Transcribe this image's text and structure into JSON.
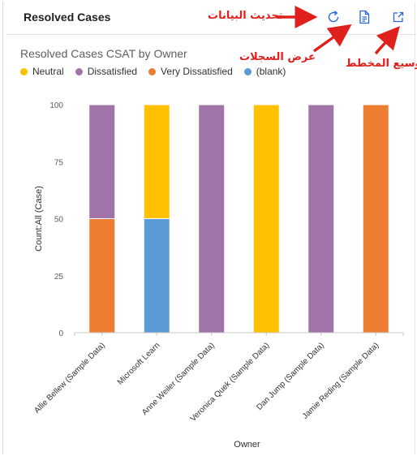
{
  "panel": {
    "title": "Resolved Cases"
  },
  "toolbar": {
    "refresh_icon": "refresh-icon",
    "view_records_icon": "document-icon",
    "expand_icon": "expand-icon",
    "accent": "#2266e3"
  },
  "annotations": {
    "refresh_label": "تحديث البيانات",
    "view_records_label": "عرض السجلات",
    "expand_label": "توسيع المخطط",
    "color": "#e0201c"
  },
  "chart_data": {
    "type": "bar",
    "stacked": true,
    "title": "Resolved Cases CSAT by Owner",
    "xlabel": "Owner",
    "ylabel": "Count:All (Case)",
    "ylim": [
      0,
      100
    ],
    "yticks": [
      0,
      25,
      50,
      75,
      100
    ],
    "grid": false,
    "legend_position": "top-left",
    "categories": [
      "Allie Bellew (Sample Data)",
      "Microsoft Learn",
      "Anne Weiler (Sample Data)",
      "Veronica Quek (Sample Data)",
      "Dan Jump (Sample Data)",
      "Jamie Reding (Sample Data)"
    ],
    "series": [
      {
        "name": "Very Dissatisfied",
        "color": "#ed7d31",
        "values": [
          50,
          0,
          0,
          0,
          0,
          100
        ]
      },
      {
        "name": "(blank)",
        "color": "#5b9bd5",
        "values": [
          0,
          50,
          0,
          0,
          0,
          0
        ]
      },
      {
        "name": "Dissatisfied",
        "color": "#a074a8",
        "values": [
          50,
          0,
          100,
          0,
          100,
          0
        ]
      },
      {
        "name": "Neutral",
        "color": "#ffc000",
        "values": [
          0,
          50,
          0,
          100,
          0,
          0
        ]
      }
    ],
    "legend_order": [
      "Neutral",
      "Dissatisfied",
      "Very Dissatisfied",
      "(blank)"
    ]
  }
}
